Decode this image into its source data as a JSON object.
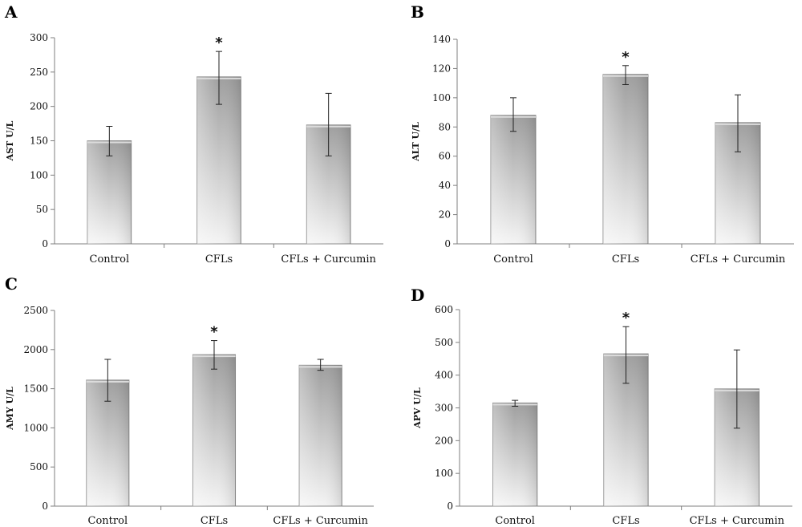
{
  "chart_data": [
    {
      "panel": "A",
      "type": "bar",
      "ylabel": "AST U/L",
      "categories": [
        "Control",
        "CFLs",
        "CFLs + Curcumin"
      ],
      "values": [
        150,
        243,
        173
      ],
      "errors": [
        [
          128,
          171
        ],
        [
          203,
          280
        ],
        [
          128,
          219
        ]
      ],
      "significance": [
        "",
        "*",
        ""
      ],
      "ylim": [
        0,
        300
      ],
      "yticks": [
        0,
        50,
        100,
        150,
        200,
        250,
        300
      ],
      "ytick_labels": [
        "0",
        "50",
        "100",
        "150",
        "200",
        "250",
        "300"
      ]
    },
    {
      "panel": "B",
      "type": "bar",
      "ylabel": "ALT U/L",
      "categories": [
        "Control",
        "CFLs",
        "CFLs + Curcumin"
      ],
      "values": [
        88,
        116,
        83
      ],
      "errors": [
        [
          77,
          100
        ],
        [
          109,
          122
        ],
        [
          63,
          102
        ]
      ],
      "significance": [
        "",
        "*",
        ""
      ],
      "ylim": [
        0,
        140
      ],
      "yticks": [
        0,
        20,
        40,
        60,
        80,
        100,
        120,
        140
      ],
      "ytick_labels": [
        "0",
        "20",
        "40",
        "60",
        "80",
        "100",
        "120",
        "140"
      ]
    },
    {
      "panel": "C",
      "type": "bar",
      "ylabel": "AMY U/L",
      "categories": [
        "Control",
        "CFLs",
        "CFLs + Curcumin"
      ],
      "values": [
        1610,
        1935,
        1800
      ],
      "errors": [
        [
          1340,
          1875
        ],
        [
          1750,
          2115
        ],
        [
          1735,
          1875
        ]
      ],
      "significance": [
        "",
        "*",
        ""
      ],
      "ylim": [
        0,
        2500
      ],
      "yticks": [
        0,
        500,
        1000,
        1500,
        2000,
        2500
      ],
      "ytick_labels": [
        "0",
        "500",
        "1000",
        "1500",
        "2000",
        "2500"
      ]
    },
    {
      "panel": "D",
      "type": "bar",
      "ylabel": "APV U/L",
      "categories": [
        "Control",
        "CFLs",
        "CFLs + Curcumin"
      ],
      "values": [
        315,
        465,
        358
      ],
      "errors": [
        [
          305,
          323
        ],
        [
          375,
          548
        ],
        [
          238,
          477
        ]
      ],
      "significance": [
        "",
        "*",
        ""
      ],
      "ylim": [
        0,
        600
      ],
      "yticks": [
        0,
        100,
        200,
        300,
        400,
        500,
        600
      ],
      "ytick_labels": [
        "0",
        "100",
        "200",
        "300",
        "400",
        "500",
        "600"
      ]
    }
  ],
  "colors": {
    "bar_dark": "#9e9e9e",
    "bar_light": "#f4f4f4",
    "bar_stroke": "#8a8a8a",
    "axis": "#7f7f7f",
    "error_bar": "#222222"
  }
}
